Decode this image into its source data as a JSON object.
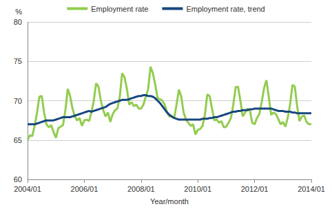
{
  "chart_data": {
    "type": "line",
    "x_label": "Year/month",
    "y_label": "%",
    "categories": [
      "2004/01",
      null,
      null,
      null,
      null,
      null,
      null,
      null,
      null,
      null,
      null,
      null,
      null,
      null,
      null,
      null,
      null,
      null,
      null,
      null,
      null,
      null,
      null,
      null,
      "2006/01",
      null,
      null,
      null,
      null,
      null,
      null,
      null,
      null,
      null,
      null,
      null,
      null,
      null,
      null,
      null,
      null,
      null,
      null,
      null,
      null,
      null,
      null,
      null,
      "2008/01",
      null,
      null,
      null,
      null,
      null,
      null,
      null,
      null,
      null,
      null,
      null,
      null,
      null,
      null,
      null,
      null,
      null,
      null,
      null,
      null,
      null,
      null,
      null,
      "2010/01",
      null,
      null,
      null,
      null,
      null,
      null,
      null,
      null,
      null,
      null,
      null,
      null,
      null,
      null,
      null,
      null,
      null,
      null,
      null,
      null,
      null,
      null,
      null,
      "2012/01",
      null,
      null,
      null,
      null,
      null,
      null,
      null,
      null,
      null,
      null,
      null,
      null,
      null,
      null,
      null,
      null,
      null,
      null,
      null,
      null,
      null,
      null,
      null,
      "2014/01"
    ],
    "series": [
      {
        "name": "Employment rate",
        "color": "#92cc4e",
        "values": [
          65.0,
          65.6,
          65.5,
          66.8,
          68.5,
          70.5,
          70.6,
          68.5,
          67.0,
          66.6,
          66.9,
          66.0,
          65.3,
          66.5,
          66.7,
          66.9,
          68.8,
          71.5,
          70.6,
          69.0,
          68.0,
          67.5,
          67.8,
          66.8,
          67.5,
          67.6,
          67.4,
          68.5,
          70.0,
          72.2,
          71.8,
          70.0,
          68.8,
          68.0,
          68.5,
          67.3,
          68.3,
          68.8,
          69.0,
          70.5,
          73.5,
          73.0,
          71.5,
          69.5,
          69.8,
          69.3,
          69.5,
          69.0,
          69.0,
          69.5,
          70.5,
          71.5,
          74.3,
          73.5,
          72.0,
          70.3,
          70.2,
          70.0,
          69.5,
          68.5,
          68.0,
          68.0,
          67.8,
          69.5,
          71.4,
          70.5,
          68.5,
          67.6,
          67.2,
          66.8,
          67.0,
          65.7,
          66.3,
          66.4,
          66.8,
          68.2,
          70.8,
          70.6,
          69.0,
          67.5,
          67.6,
          67.2,
          67.4,
          66.6,
          66.7,
          67.2,
          67.8,
          69.5,
          71.7,
          71.8,
          70.0,
          68.0,
          68.5,
          69.0,
          68.8,
          67.2,
          67.0,
          67.8,
          68.3,
          69.8,
          71.6,
          72.6,
          70.5,
          68.2,
          68.5,
          68.3,
          67.7,
          67.0,
          67.3,
          66.7,
          67.8,
          69.5,
          72.0,
          71.8,
          69.3,
          67.4,
          68.0,
          68.1,
          67.3,
          67.0,
          67.0
        ]
      },
      {
        "name": "Employment rate, trend",
        "color": "#17477d",
        "values": [
          67.0,
          67.0,
          67.0,
          67.0,
          67.1,
          67.2,
          67.3,
          67.4,
          67.5,
          67.5,
          67.5,
          67.5,
          67.6,
          67.7,
          67.8,
          67.9,
          67.9,
          67.9,
          67.9,
          68.0,
          68.1,
          68.2,
          68.3,
          68.4,
          68.5,
          68.6,
          68.7,
          68.6,
          68.7,
          68.8,
          68.9,
          69.0,
          69.1,
          69.2,
          69.4,
          69.6,
          69.7,
          69.8,
          69.9,
          70.0,
          70.1,
          70.1,
          70.1,
          70.2,
          70.3,
          70.4,
          70.5,
          70.6,
          70.6,
          70.7,
          70.7,
          70.6,
          70.6,
          70.5,
          70.3,
          70.0,
          69.7,
          69.3,
          68.9,
          68.5,
          68.2,
          68.0,
          67.8,
          67.7,
          67.6,
          67.6,
          67.6,
          67.6,
          67.6,
          67.6,
          67.6,
          67.6,
          67.6,
          67.6,
          67.7,
          67.7,
          67.7,
          67.8,
          67.8,
          67.9,
          67.9,
          68.0,
          68.1,
          68.2,
          68.3,
          68.4,
          68.5,
          68.6,
          68.6,
          68.7,
          68.7,
          68.8,
          68.8,
          68.8,
          68.9,
          68.9,
          69.0,
          69.0,
          69.0,
          69.0,
          69.0,
          69.0,
          69.0,
          69.0,
          68.9,
          68.8,
          68.7,
          68.7,
          68.7,
          68.6,
          68.6,
          68.6,
          68.5,
          68.5,
          68.4,
          68.4,
          68.4,
          68.4,
          68.4,
          68.4,
          68.4
        ]
      }
    ],
    "ylim": [
      60,
      80
    ],
    "yticks": [
      60,
      65,
      70,
      75,
      80
    ],
    "grid": true,
    "legend": "top"
  }
}
